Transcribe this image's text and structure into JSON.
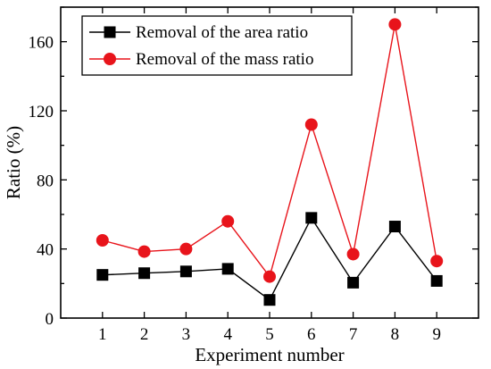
{
  "chart_data": {
    "type": "line",
    "title": "",
    "xlabel": "Experiment number",
    "ylabel": "Ratio (%)",
    "x": [
      1,
      2,
      3,
      4,
      5,
      6,
      7,
      8,
      9
    ],
    "xlim": [
      0,
      10
    ],
    "ylim": [
      0,
      180
    ],
    "yticks": [
      0,
      40,
      80,
      120,
      160
    ],
    "xticks": [
      1,
      2,
      3,
      4,
      5,
      6,
      7,
      8,
      9
    ],
    "grid": false,
    "legend_position": "top-left",
    "series": [
      {
        "name": "Removal of the area ratio",
        "marker": "square",
        "color": "#000000",
        "values": [
          25,
          26,
          27,
          28.5,
          10.5,
          58,
          20.5,
          53,
          21.5
        ]
      },
      {
        "name": "Removal of the mass ratio",
        "marker": "circle",
        "color": "#e8141b",
        "values": [
          45,
          38.5,
          40,
          56,
          24,
          112,
          37,
          170,
          33
        ]
      }
    ]
  }
}
